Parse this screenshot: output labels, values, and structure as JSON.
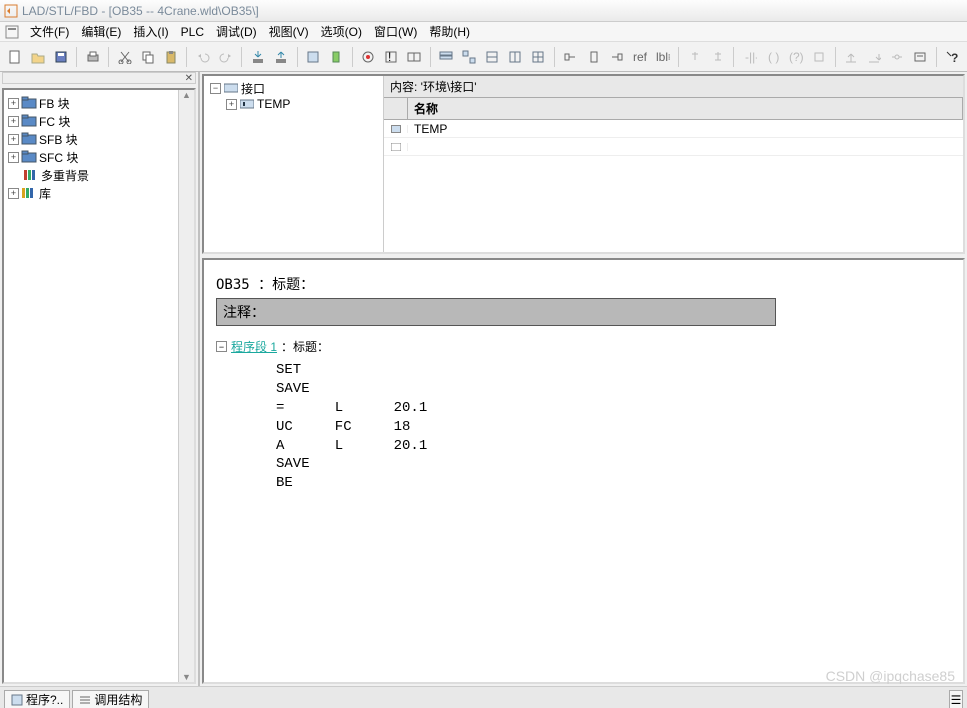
{
  "title": "LAD/STL/FBD  - [OB35 -- 4Crane.wld\\OB35\\]",
  "menus": [
    "文件(F)",
    "编辑(E)",
    "插入(I)",
    "PLC",
    "调试(D)",
    "视图(V)",
    "选项(O)",
    "窗口(W)",
    "帮助(H)"
  ],
  "toolbar_groups": [
    [
      "new",
      "open",
      "save"
    ],
    [
      "print"
    ],
    [
      "cut",
      "copy",
      "paste"
    ],
    [
      "undo",
      "redo"
    ],
    [
      "download",
      "upload"
    ],
    [
      "module",
      "bookmark"
    ],
    [
      "online",
      "zoom-out",
      "zoom-in"
    ],
    [
      "catalog",
      "network",
      "fbd",
      "lad",
      "stl"
    ],
    [
      "node1",
      "node2",
      "node3",
      "ref",
      "tags"
    ],
    [
      "jmp1",
      "jmp2"
    ],
    [
      "assign",
      "open-branch",
      "open-branch2",
      "close-branch"
    ],
    [
      "up",
      "down",
      "coil",
      "comment"
    ],
    [
      "help"
    ]
  ],
  "disabled_tools": [
    "undo",
    "redo",
    "jmp1",
    "jmp2",
    "assign",
    "open-branch",
    "open-branch2",
    "close-branch",
    "up",
    "down",
    "coil"
  ],
  "sidebar": {
    "items": [
      {
        "label": "FB 块",
        "icon": "folder",
        "color": "#5a8ac6"
      },
      {
        "label": "FC 块",
        "icon": "folder",
        "color": "#5a8ac6"
      },
      {
        "label": "SFB 块",
        "icon": "folder",
        "color": "#5a8ac6"
      },
      {
        "label": "SFC 块",
        "icon": "folder",
        "color": "#5a8ac6"
      },
      {
        "label": "多重背景",
        "icon": "books",
        "color": "#c04030",
        "expandable": false
      },
      {
        "label": "库",
        "icon": "books",
        "color": "#d9a420"
      }
    ]
  },
  "bottom_tabs": [
    "程序?..",
    "调用结构"
  ],
  "interface_tree": {
    "root": "接口",
    "child": "TEMP"
  },
  "content_header": "内容: '环境\\接口'",
  "grid": {
    "col": "名称",
    "row": "TEMP"
  },
  "block": {
    "title": "OB35 ：标题：",
    "comment_label": "注释：",
    "segment": "程序段 1",
    "segment_suffix": "：标题：",
    "code": "SET\nSAVE\n=      L      20.1\nUC     FC     18\nA      L      20.1\nSAVE\nBE"
  },
  "watermark": "CSDN @ipqchase85"
}
